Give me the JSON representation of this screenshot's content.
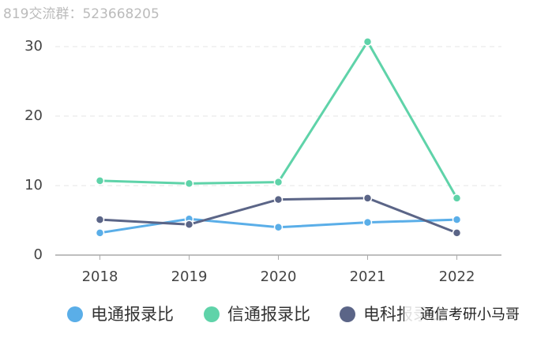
{
  "chart_data": {
    "type": "line",
    "watermark_top": "819交流群：523668205",
    "watermark_bottom": "通信考研小马哥",
    "categories": [
      "2018",
      "2019",
      "2020",
      "2021",
      "2022"
    ],
    "series": [
      {
        "name": "电通报录比",
        "color": "#5aaee8",
        "values": [
          3.2,
          5.2,
          4.0,
          4.7,
          5.1
        ]
      },
      {
        "name": "信通报录比",
        "color": "#5fd3a9",
        "values": [
          10.7,
          10.3,
          10.5,
          30.7,
          8.2
        ]
      },
      {
        "name": "电科报录比",
        "color": "#5b6587",
        "values": [
          5.1,
          4.4,
          8.0,
          8.2,
          3.2
        ]
      }
    ],
    "ylim": [
      0,
      30
    ],
    "yticks": [
      0,
      10,
      20,
      30
    ],
    "grid": true
  }
}
